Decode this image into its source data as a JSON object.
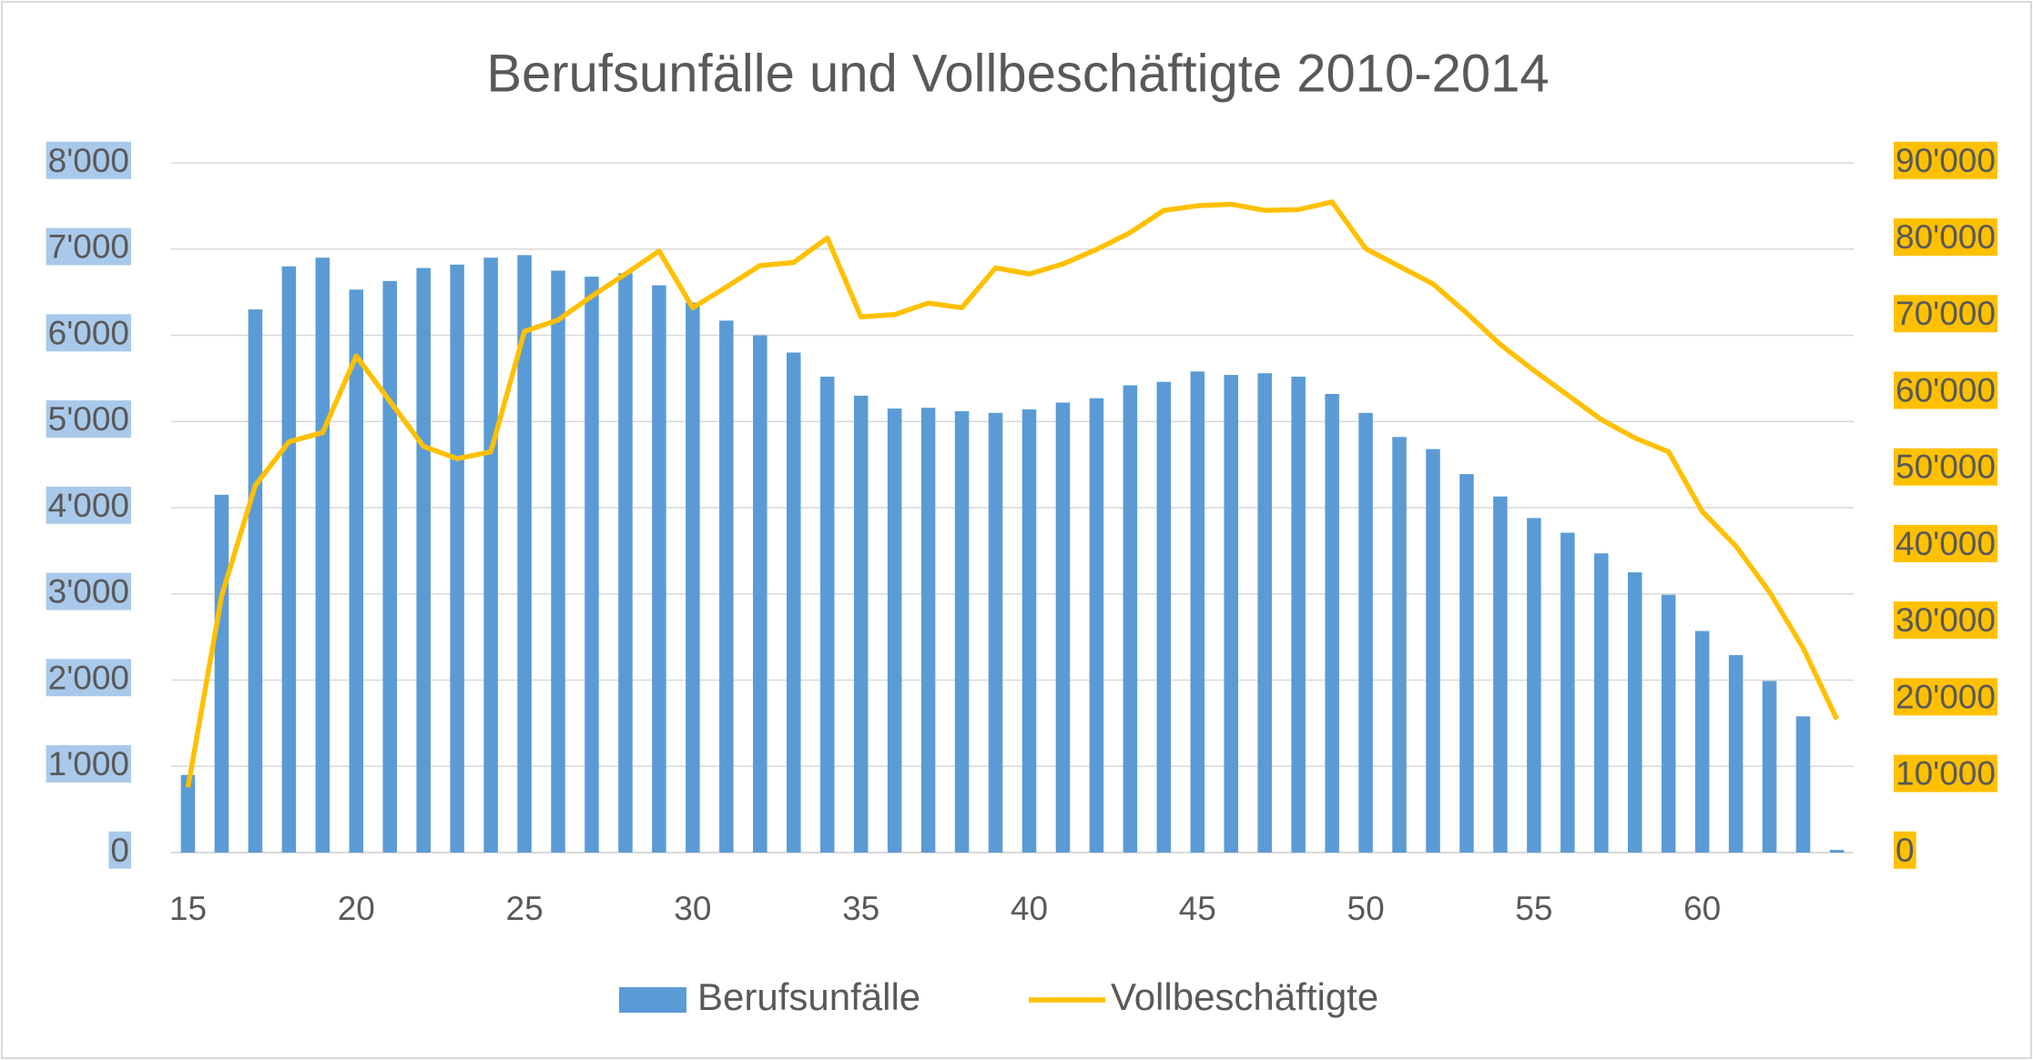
{
  "chart_data": {
    "type": "bar-line",
    "title": "Berufsunfälle und Vollbeschäftigte 2010-2014",
    "categories": [
      "15",
      null,
      null,
      null,
      null,
      "20",
      null,
      null,
      null,
      null,
      "25",
      null,
      null,
      null,
      null,
      "30",
      null,
      null,
      null,
      null,
      "35",
      null,
      null,
      null,
      null,
      "40",
      null,
      null,
      null,
      null,
      "45",
      null,
      null,
      null,
      null,
      "50",
      null,
      null,
      null,
      null,
      "55",
      null,
      null,
      null,
      null,
      "60",
      null,
      null,
      null,
      null
    ],
    "series": [
      {
        "name": "Berufsunfälle",
        "type": "bar",
        "color": "#5b9bd5",
        "axis": "y",
        "values": [
          900,
          4150,
          6300,
          6800,
          6900,
          6530,
          6630,
          6780,
          6820,
          6900,
          6930,
          6750,
          6680,
          6720,
          6580,
          6380,
          6170,
          6000,
          5800,
          5520,
          5300,
          5150,
          5160,
          5120,
          5100,
          5140,
          5220,
          5270,
          5420,
          5460,
          5580,
          5540,
          5560,
          5520,
          5320,
          5100,
          4820,
          4680,
          4390,
          4130,
          3880,
          3710,
          3470,
          3250,
          2990,
          2570,
          2290,
          1990,
          1580,
          30
        ]
      },
      {
        "name": "Vollbeschäftigte",
        "type": "line",
        "color": "#ffc000",
        "axis": "y2",
        "values": [
          8500,
          33500,
          47900,
          53600,
          54800,
          64800,
          58900,
          53000,
          51400,
          52300,
          68000,
          69500,
          72600,
          75500,
          78500,
          71100,
          73800,
          76600,
          77000,
          80200,
          69900,
          70200,
          71700,
          71100,
          76300,
          75500,
          76800,
          78700,
          80900,
          83800,
          84400,
          84600,
          83800,
          83900,
          84900,
          78800,
          76500,
          74200,
          70400,
          66300,
          62900,
          59700,
          56500,
          54100,
          52300,
          44500,
          40000,
          34000,
          26700,
          17400
        ]
      }
    ],
    "ylim": [
      0,
      8000
    ],
    "yticks": [
      0,
      {
        "value": 1000,
        "label": "1'000"
      },
      {
        "value": 2000,
        "label": "2'000"
      },
      {
        "value": 3000,
        "label": "3'000"
      },
      {
        "value": 4000,
        "label": "4'000"
      },
      {
        "value": 5000,
        "label": "5'000"
      },
      {
        "value": 6000,
        "label": "6'000"
      },
      {
        "value": 7000,
        "label": "7'000"
      },
      {
        "value": 8000,
        "label": "8'000"
      }
    ],
    "y2lim": [
      0,
      90000
    ],
    "y2ticks": [
      0,
      {
        "value": 10000,
        "label": "10'000"
      },
      {
        "value": 20000,
        "label": "20'000"
      },
      {
        "value": 30000,
        "label": "30'000"
      },
      {
        "value": 40000,
        "label": "40'000"
      },
      {
        "value": 50000,
        "label": "50'000"
      },
      {
        "value": 60000,
        "label": "60'000"
      },
      {
        "value": 70000,
        "label": "70'000"
      },
      {
        "value": 80000,
        "label": "80'000"
      },
      {
        "value": 90000,
        "label": "90'000"
      }
    ],
    "grid": true,
    "legend": "bottom"
  }
}
